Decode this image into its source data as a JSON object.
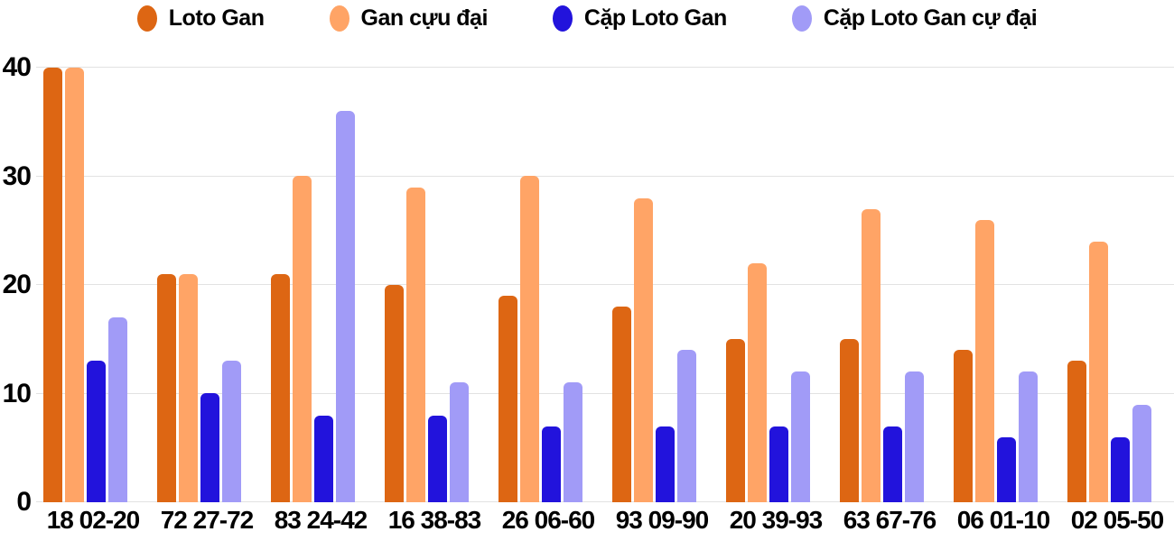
{
  "legend": {
    "items": [
      {
        "label": "Loto Gan",
        "color": "#dd6613",
        "icon": "loto-gan-dot"
      },
      {
        "label": "Gan cựu đại",
        "color": "#ffa466",
        "icon": "gan-cuu-dai-dot"
      },
      {
        "label": "Cặp Loto Gan",
        "color": "#2213dc",
        "icon": "cap-loto-gan-dot"
      },
      {
        "label": "Cặp Loto Gan cự đại",
        "color": "#a19bf7",
        "icon": "cap-loto-gan-cu-dai-dot"
      }
    ]
  },
  "chart_data": {
    "type": "bar",
    "title": "",
    "xlabel": "",
    "ylabel": "",
    "categories": [
      "18 02-20",
      "72 27-72",
      "83 24-42",
      "16 38-83",
      "26 06-60",
      "93 09-90",
      "20 39-93",
      "63 67-76",
      "06 01-10",
      "02 05-50"
    ],
    "series": [
      {
        "name": "Loto Gan",
        "color": "#dd6613",
        "values": [
          40,
          21,
          21,
          20,
          19,
          18,
          15,
          15,
          14,
          13
        ]
      },
      {
        "name": "Gan cựu đại",
        "color": "#ffa466",
        "values": [
          40,
          21,
          30,
          29,
          30,
          28,
          22,
          27,
          26,
          24
        ]
      },
      {
        "name": "Cặp Loto Gan",
        "color": "#2213dc",
        "values": [
          13,
          10,
          8,
          8,
          7,
          7,
          7,
          7,
          6,
          6
        ]
      },
      {
        "name": "Cặp Loto Gan cự đại",
        "color": "#a19bf7",
        "values": [
          17,
          13,
          36,
          11,
          11,
          14,
          12,
          12,
          12,
          9
        ]
      }
    ],
    "yticks": [
      0,
      10,
      20,
      30,
      40
    ],
    "ylim": [
      0,
      40
    ],
    "grid": true,
    "legend_position": "top",
    "gridline_color": "#e2e2e2"
  }
}
